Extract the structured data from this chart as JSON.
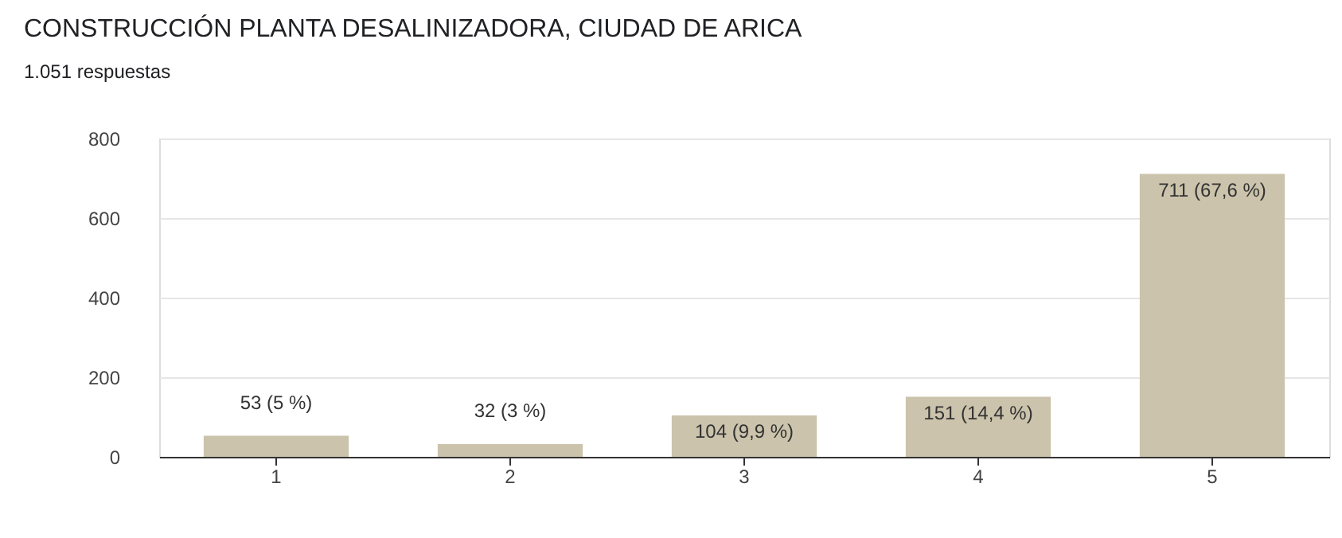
{
  "chart_data": {
    "type": "bar",
    "title": "CONSTRUCCIÓN PLANTA DESALINIZADORA, CIUDAD DE ARICA",
    "subtitle": "1.051 respuestas",
    "categories": [
      "1",
      "2",
      "3",
      "4",
      "5"
    ],
    "values": [
      53,
      32,
      104,
      151,
      711
    ],
    "value_labels": [
      "53 (5 %)",
      "32 (3 %)",
      "104 (9,9 %)",
      "151 (14,4 %)",
      "711 (67,6 %)"
    ],
    "color": "#cbc3ab",
    "ylim": [
      0,
      800
    ],
    "yticks": [
      0,
      200,
      400,
      600,
      800
    ],
    "grid": "y"
  }
}
